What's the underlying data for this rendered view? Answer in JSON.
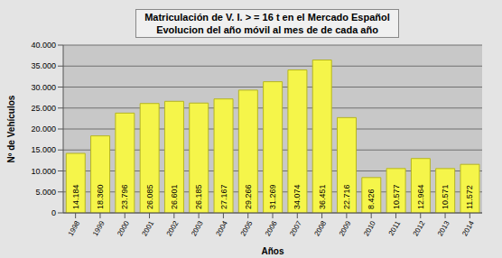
{
  "chart_data": {
    "type": "bar",
    "title": "Matriculación de V. I. > = 16 t en el Mercado Español",
    "subtitle": "Evolucion del año móvil al mes de  de cada año",
    "xlabel": "Años",
    "ylabel": "Nº de Vehículos",
    "categories": [
      "1998",
      "1999",
      "2000",
      "2001",
      "2002",
      "2003",
      "2004",
      "2005",
      "2006",
      "2007",
      "2008",
      "2009",
      "2010",
      "2011",
      "2012",
      "2013",
      "2014"
    ],
    "values": [
      14184,
      18360,
      23796,
      26085,
      26601,
      26185,
      27167,
      29266,
      31269,
      34074,
      36451,
      22716,
      8426,
      10577,
      12964,
      10571,
      11572
    ],
    "value_labels": [
      "14.184",
      "18.360",
      "23.796",
      "26.085",
      "26.601",
      "26.185",
      "27.167",
      "29.266",
      "31.269",
      "34.074",
      "36.451",
      "22.716",
      "8.426",
      "10.577",
      "12.964",
      "10.571",
      "11.572"
    ],
    "color": "#f5f54a",
    "ylim": [
      0,
      40000
    ],
    "yticks": [
      0,
      {
        "value": 5000,
        "label": "5.000"
      },
      {
        "value": 10000,
        "label": "10.000"
      },
      {
        "value": 15000,
        "label": "15.000"
      },
      {
        "value": 20000,
        "label": "20.000"
      },
      {
        "value": 25000,
        "label": "25.000"
      },
      {
        "value": 30000,
        "label": "30.000"
      },
      {
        "value": 35000,
        "label": "35.000"
      },
      {
        "value": 40000,
        "label": "40.000"
      }
    ],
    "grid": true,
    "data_labels": true
  }
}
